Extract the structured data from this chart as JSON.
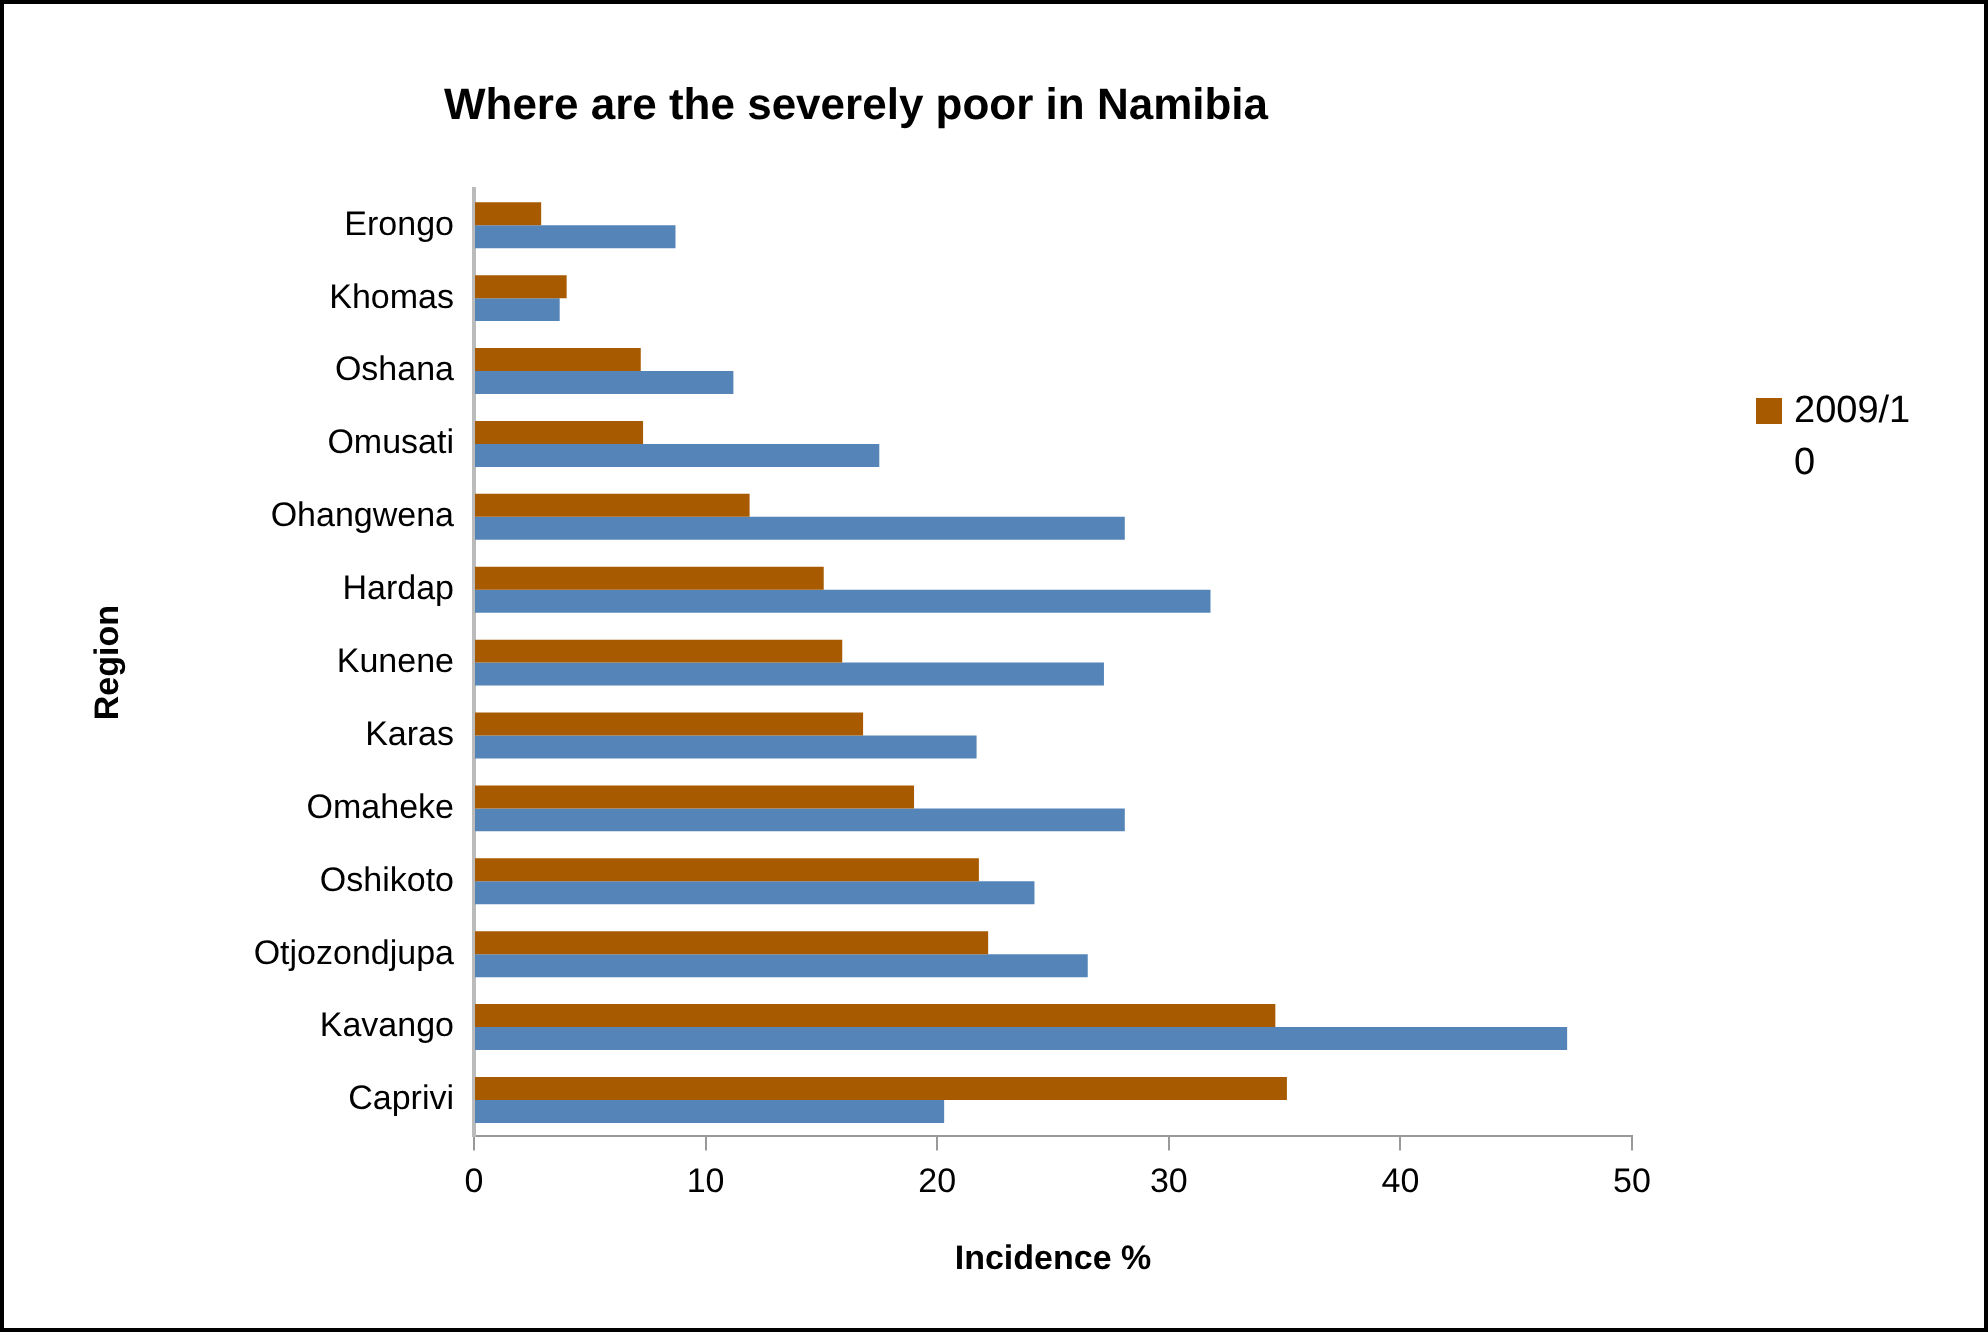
{
  "chart_data": {
    "type": "bar",
    "orientation": "horizontal",
    "title": "Where are the severely poor in Namibia",
    "xlabel": "Incidence %",
    "ylabel": "Region",
    "categories": [
      "Erongo",
      "Khomas",
      "Oshana",
      "Omusati",
      "Ohangwena",
      "Hardap",
      "Kunene",
      "Karas",
      "Omaheke",
      "Oshikoto",
      "Otjozondjupa",
      "Kavango",
      "Caprivi"
    ],
    "series": [
      {
        "name": "2009/10",
        "color": "#a85a00",
        "values": [
          2.9,
          4.0,
          7.2,
          7.3,
          11.9,
          15.1,
          15.9,
          16.8,
          19.0,
          21.8,
          22.2,
          34.6,
          35.1
        ]
      },
      {
        "color": "#5585b8",
        "values": [
          8.7,
          3.7,
          11.2,
          17.5,
          28.1,
          31.8,
          27.2,
          21.7,
          28.1,
          24.2,
          26.5,
          47.2,
          20.3
        ]
      }
    ],
    "xlim": [
      0,
      50
    ],
    "xticks": [
      0,
      10,
      20,
      30,
      40,
      50
    ],
    "grid": false,
    "legend": "right"
  }
}
